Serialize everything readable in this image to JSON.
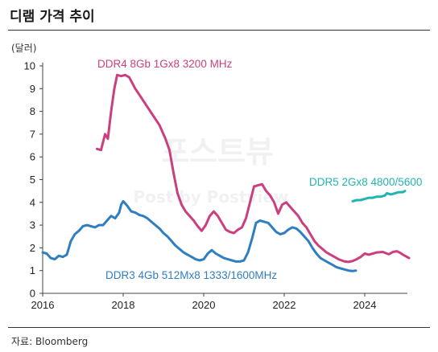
{
  "title": "디램 가격 추이",
  "unit": "(달러)",
  "source": "자료: Bloomberg",
  "watermark": {
    "line1": "포스트뷰",
    "line2": "Post by Postview"
  },
  "chart_data": {
    "type": "line",
    "xlim": [
      2016,
      2025
    ],
    "ylim": [
      0,
      10
    ],
    "xticks": [
      2016,
      2018,
      2020,
      2022,
      2024
    ],
    "yticks": [
      0,
      1,
      2,
      3,
      4,
      5,
      6,
      7,
      8,
      9,
      10
    ],
    "grid": false,
    "series": [
      {
        "name": "DDR4 8Gb 1Gx8 3200 MHz",
        "color": "#cc3f7e",
        "points": [
          [
            2017.35,
            6.35
          ],
          [
            2017.45,
            6.3
          ],
          [
            2017.55,
            7.0
          ],
          [
            2017.62,
            6.8
          ],
          [
            2017.7,
            8.0
          ],
          [
            2017.78,
            9.0
          ],
          [
            2017.85,
            9.6
          ],
          [
            2017.95,
            9.55
          ],
          [
            2018.05,
            9.6
          ],
          [
            2018.15,
            9.5
          ],
          [
            2018.3,
            9.0
          ],
          [
            2018.45,
            8.6
          ],
          [
            2018.6,
            8.2
          ],
          [
            2018.75,
            7.8
          ],
          [
            2018.9,
            7.4
          ],
          [
            2019.05,
            6.8
          ],
          [
            2019.15,
            6.3
          ],
          [
            2019.25,
            5.3
          ],
          [
            2019.35,
            4.4
          ],
          [
            2019.45,
            3.9
          ],
          [
            2019.55,
            3.6
          ],
          [
            2019.65,
            3.4
          ],
          [
            2019.75,
            3.2
          ],
          [
            2019.85,
            2.95
          ],
          [
            2019.95,
            2.75
          ],
          [
            2020.05,
            3.0
          ],
          [
            2020.15,
            3.4
          ],
          [
            2020.25,
            3.6
          ],
          [
            2020.35,
            3.4
          ],
          [
            2020.45,
            3.1
          ],
          [
            2020.55,
            2.8
          ],
          [
            2020.65,
            2.7
          ],
          [
            2020.75,
            2.65
          ],
          [
            2020.85,
            2.8
          ],
          [
            2020.95,
            2.9
          ],
          [
            2021.05,
            3.3
          ],
          [
            2021.15,
            4.0
          ],
          [
            2021.25,
            4.7
          ],
          [
            2021.35,
            4.75
          ],
          [
            2021.45,
            4.8
          ],
          [
            2021.55,
            4.5
          ],
          [
            2021.65,
            4.3
          ],
          [
            2021.75,
            4.0
          ],
          [
            2021.85,
            3.5
          ],
          [
            2021.95,
            3.9
          ],
          [
            2022.05,
            4.0
          ],
          [
            2022.15,
            3.8
          ],
          [
            2022.25,
            3.6
          ],
          [
            2022.35,
            3.4
          ],
          [
            2022.45,
            3.1
          ],
          [
            2022.55,
            2.9
          ],
          [
            2022.65,
            2.6
          ],
          [
            2022.75,
            2.3
          ],
          [
            2022.85,
            2.1
          ],
          [
            2022.95,
            1.95
          ],
          [
            2023.05,
            1.8
          ],
          [
            2023.15,
            1.7
          ],
          [
            2023.25,
            1.6
          ],
          [
            2023.35,
            1.5
          ],
          [
            2023.5,
            1.4
          ],
          [
            2023.6,
            1.38
          ],
          [
            2023.7,
            1.42
          ],
          [
            2023.8,
            1.5
          ],
          [
            2023.9,
            1.6
          ],
          [
            2024.0,
            1.75
          ],
          [
            2024.1,
            1.7
          ],
          [
            2024.2,
            1.75
          ],
          [
            2024.3,
            1.8
          ],
          [
            2024.45,
            1.82
          ],
          [
            2024.55,
            1.75
          ],
          [
            2024.6,
            1.72
          ],
          [
            2024.7,
            1.82
          ],
          [
            2024.8,
            1.85
          ],
          [
            2024.88,
            1.78
          ],
          [
            2024.95,
            1.7
          ],
          [
            2025.05,
            1.6
          ],
          [
            2025.1,
            1.55
          ]
        ]
      },
      {
        "name": "DDR3 4Gb 512Mx8 1333/1600MHz",
        "color": "#2f7ebf",
        "points": [
          [
            2016.0,
            1.8
          ],
          [
            2016.1,
            1.75
          ],
          [
            2016.2,
            1.55
          ],
          [
            2016.3,
            1.5
          ],
          [
            2016.4,
            1.65
          ],
          [
            2016.5,
            1.6
          ],
          [
            2016.6,
            1.7
          ],
          [
            2016.7,
            2.3
          ],
          [
            2016.8,
            2.6
          ],
          [
            2016.9,
            2.75
          ],
          [
            2017.0,
            2.95
          ],
          [
            2017.1,
            3.0
          ],
          [
            2017.2,
            2.95
          ],
          [
            2017.3,
            2.9
          ],
          [
            2017.4,
            3.0
          ],
          [
            2017.5,
            3.0
          ],
          [
            2017.6,
            3.2
          ],
          [
            2017.7,
            3.4
          ],
          [
            2017.8,
            3.3
          ],
          [
            2017.9,
            3.55
          ],
          [
            2017.95,
            3.9
          ],
          [
            2018.0,
            4.05
          ],
          [
            2018.1,
            3.85
          ],
          [
            2018.2,
            3.6
          ],
          [
            2018.3,
            3.55
          ],
          [
            2018.4,
            3.45
          ],
          [
            2018.5,
            3.4
          ],
          [
            2018.6,
            3.3
          ],
          [
            2018.7,
            3.15
          ],
          [
            2018.8,
            3.0
          ],
          [
            2018.9,
            2.85
          ],
          [
            2019.0,
            2.65
          ],
          [
            2019.1,
            2.5
          ],
          [
            2019.2,
            2.3
          ],
          [
            2019.3,
            2.1
          ],
          [
            2019.4,
            1.95
          ],
          [
            2019.5,
            1.8
          ],
          [
            2019.6,
            1.7
          ],
          [
            2019.7,
            1.6
          ],
          [
            2019.8,
            1.5
          ],
          [
            2019.9,
            1.45
          ],
          [
            2020.0,
            1.5
          ],
          [
            2020.1,
            1.75
          ],
          [
            2020.2,
            1.9
          ],
          [
            2020.3,
            1.75
          ],
          [
            2020.4,
            1.65
          ],
          [
            2020.5,
            1.55
          ],
          [
            2020.6,
            1.5
          ],
          [
            2020.7,
            1.45
          ],
          [
            2020.8,
            1.4
          ],
          [
            2020.9,
            1.4
          ],
          [
            2021.0,
            1.45
          ],
          [
            2021.1,
            1.8
          ],
          [
            2021.2,
            2.4
          ],
          [
            2021.3,
            3.1
          ],
          [
            2021.4,
            3.2
          ],
          [
            2021.5,
            3.15
          ],
          [
            2021.6,
            3.1
          ],
          [
            2021.7,
            2.9
          ],
          [
            2021.8,
            2.7
          ],
          [
            2021.9,
            2.6
          ],
          [
            2022.0,
            2.65
          ],
          [
            2022.1,
            2.8
          ],
          [
            2022.2,
            2.9
          ],
          [
            2022.3,
            2.85
          ],
          [
            2022.4,
            2.7
          ],
          [
            2022.5,
            2.5
          ],
          [
            2022.6,
            2.3
          ],
          [
            2022.7,
            2.0
          ],
          [
            2022.8,
            1.75
          ],
          [
            2022.9,
            1.55
          ],
          [
            2023.0,
            1.45
          ],
          [
            2023.1,
            1.35
          ],
          [
            2023.2,
            1.25
          ],
          [
            2023.3,
            1.15
          ],
          [
            2023.4,
            1.1
          ],
          [
            2023.5,
            1.05
          ],
          [
            2023.6,
            1.0
          ],
          [
            2023.7,
            0.98
          ],
          [
            2023.78,
            1.0
          ]
        ]
      },
      {
        "name": "DDR5 2Gx8 4800/5600",
        "color": "#22b3b3",
        "points": [
          [
            2023.7,
            4.05
          ],
          [
            2023.8,
            4.1
          ],
          [
            2023.9,
            4.1
          ],
          [
            2024.0,
            4.15
          ],
          [
            2024.1,
            4.2
          ],
          [
            2024.2,
            4.2
          ],
          [
            2024.3,
            4.25
          ],
          [
            2024.4,
            4.25
          ],
          [
            2024.5,
            4.3
          ],
          [
            2024.55,
            4.4
          ],
          [
            2024.65,
            4.35
          ],
          [
            2024.75,
            4.4
          ],
          [
            2024.85,
            4.45
          ],
          [
            2024.95,
            4.45
          ],
          [
            2025.0,
            4.5
          ]
        ]
      }
    ]
  }
}
